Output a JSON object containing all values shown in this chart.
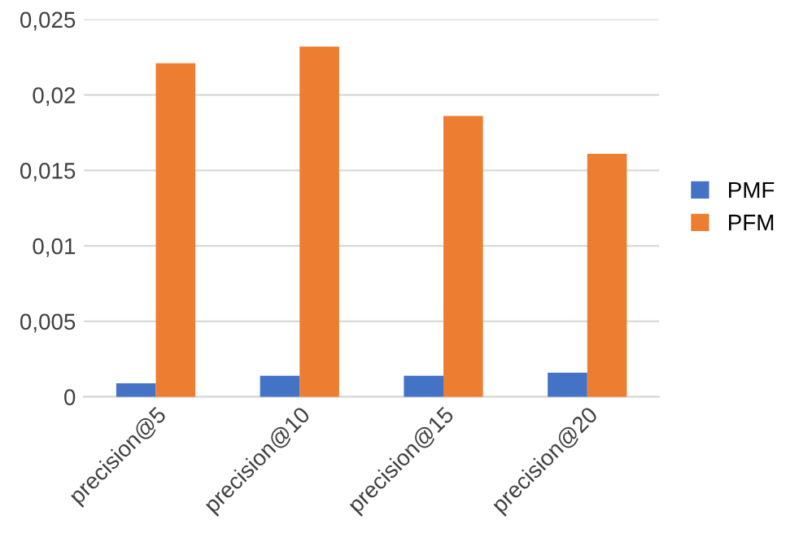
{
  "chart_data": {
    "type": "bar",
    "categories": [
      "precision@5",
      "precision@10",
      "precision@15",
      "precision@20"
    ],
    "series": [
      {
        "name": "PMF",
        "color": "#4472c4",
        "values": [
          0.0009,
          0.0014,
          0.0014,
          0.0016
        ]
      },
      {
        "name": "PFM",
        "color": "#ed7d31",
        "values": [
          0.0221,
          0.0232,
          0.0186,
          0.0161
        ]
      }
    ],
    "ylim": [
      0,
      0.025
    ],
    "yticks": [
      {
        "value": 0,
        "label": "0"
      },
      {
        "value": 0.005,
        "label": "0,005"
      },
      {
        "value": 0.01,
        "label": "0,01"
      },
      {
        "value": 0.015,
        "label": "0,015"
      },
      {
        "value": 0.02,
        "label": "0,02"
      },
      {
        "value": 0.025,
        "label": "0,025"
      }
    ],
    "grid": "y",
    "legend": "right"
  }
}
